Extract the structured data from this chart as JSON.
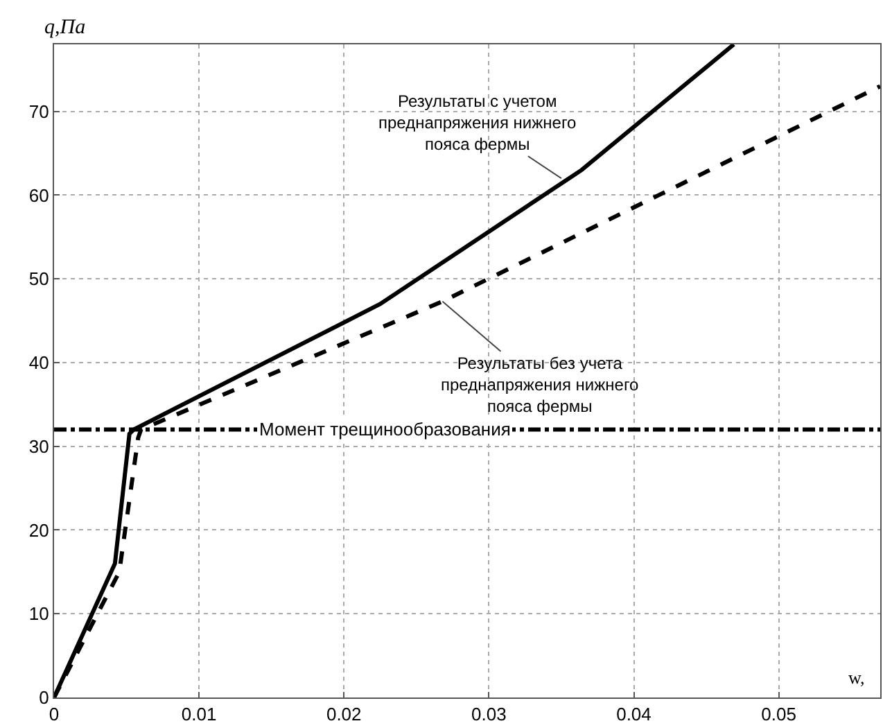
{
  "chart_data": {
    "type": "line",
    "xlabel": "w,",
    "ylabel": "q,Па",
    "xlim": [
      0,
      0.057
    ],
    "ylim": [
      0,
      78
    ],
    "xticks": [
      0,
      0.01,
      0.02,
      0.03,
      0.04,
      0.05
    ],
    "yticks": [
      0,
      10,
      20,
      30,
      40,
      50,
      60,
      70
    ],
    "grid": true,
    "series": [
      {
        "color": "#000000",
        "line_style": "solid",
        "x": [
          0,
          0.0042,
          0.0052,
          0.0055,
          0.0225,
          0.0364,
          0.0469
        ],
        "values": [
          0,
          16,
          31.5,
          32,
          47,
          63,
          78
        ]
      },
      {
        "color": "#000000",
        "line_style": "dashed",
        "x": [
          0,
          0.0045,
          0.0058,
          0.006,
          0.0268,
          0.057
        ],
        "values": [
          0,
          15,
          31,
          32,
          47.3,
          73
        ]
      }
    ],
    "ref_lines": [
      {
        "axis": "y",
        "value": 32,
        "label": "Момент трещинообразования",
        "line_style": "dashdot",
        "color": "#000000"
      }
    ],
    "annotations": [
      {
        "text": "Результаты с учетом\nпреднапряжения нижнего\nпояса фермы",
        "x": 0.035,
        "y": 62
      },
      {
        "text": "Результаты без учета\nпреднапряжения нижнего\nпояса фермы",
        "x": 0.0268,
        "y": 47.3
      }
    ]
  }
}
